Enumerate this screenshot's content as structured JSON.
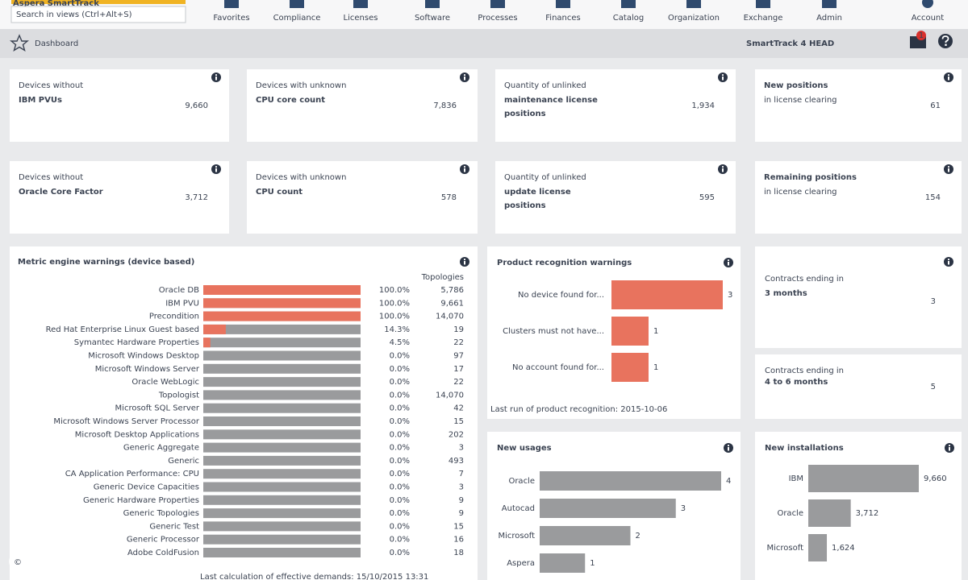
{
  "nav": {
    "logo": "Aspera SmartTrack",
    "search_placeholder": "Search in views (Ctrl+Alt+S)",
    "items": [
      "Favorites",
      "Compliance",
      "Licenses",
      "Software",
      "Processes",
      "Finances",
      "Catalog",
      "Organization",
      "Exchange",
      "Admin"
    ],
    "account": "Account"
  },
  "header": {
    "title": "Dashboard",
    "version": "SmartTrack 4 HEAD",
    "notifications": "1"
  },
  "kpis": [
    {
      "label": "Devices without",
      "sublabel": "IBM PVUs",
      "value": "9,660"
    },
    {
      "label": "Devices with unknown",
      "sublabel": "CPU core count",
      "value": "7,836"
    },
    {
      "label": "Quantity of unlinked",
      "sublabel": "maintenance license positions",
      "value": "1,934"
    },
    {
      "label": "New positions",
      "sublabel": "in license clearing",
      "value": "61"
    },
    {
      "label": "Devices without",
      "sublabel": "Oracle Core Factor",
      "value": "3,712"
    },
    {
      "label": "Devices with unknown",
      "sublabel": "CPU count",
      "value": "578"
    },
    {
      "label": "Quantity of unlinked",
      "sublabel": "update license positions",
      "value": "595"
    },
    {
      "label": "Remaining positions",
      "sublabel": "in license clearing",
      "value": "154"
    }
  ],
  "metric_warnings": {
    "title": "Metric engine warnings (device based)",
    "column_header": "Topologies",
    "rows": [
      {
        "name": "Oracle DB",
        "percent": 100,
        "percent_label": "100.0%",
        "topologies": "5,786"
      },
      {
        "name": "IBM PVU",
        "percent": 100,
        "percent_label": "100.0%",
        "topologies": "9,661"
      },
      {
        "name": "Precondition",
        "percent": 100,
        "percent_label": "100.0%",
        "topologies": "14,070"
      },
      {
        "name": "Red Hat Enterprise Linux Guest based",
        "percent": 14.3,
        "percent_label": "14.3%",
        "topologies": "19"
      },
      {
        "name": "Symantec Hardware Properties",
        "percent": 4.5,
        "percent_label": "4.5%",
        "topologies": "22"
      },
      {
        "name": "Microsoft Windows Desktop",
        "percent": 0,
        "percent_label": "0.0%",
        "topologies": "97"
      },
      {
        "name": "Microsoft Windows Server",
        "percent": 0,
        "percent_label": "0.0%",
        "topologies": "17"
      },
      {
        "name": "Oracle WebLogic",
        "percent": 0,
        "percent_label": "0.0%",
        "topologies": "22"
      },
      {
        "name": "Topologist",
        "percent": 0,
        "percent_label": "0.0%",
        "topologies": "14,070"
      },
      {
        "name": "Microsoft SQL Server",
        "percent": 0,
        "percent_label": "0.0%",
        "topologies": "42"
      },
      {
        "name": "Microsoft Windows Server Processor",
        "percent": 0,
        "percent_label": "0.0%",
        "topologies": "15"
      },
      {
        "name": "Microsoft Desktop Applications",
        "percent": 0,
        "percent_label": "0.0%",
        "topologies": "202"
      },
      {
        "name": "Generic Aggregate",
        "percent": 0,
        "percent_label": "0.0%",
        "topologies": "3"
      },
      {
        "name": "Generic",
        "percent": 0,
        "percent_label": "0.0%",
        "topologies": "493"
      },
      {
        "name": "CA Application Performance: CPU",
        "percent": 0,
        "percent_label": "0.0%",
        "topologies": "7"
      },
      {
        "name": "Generic Device Capacities",
        "percent": 0,
        "percent_label": "0.0%",
        "topologies": "3"
      },
      {
        "name": "Generic Hardware Properties",
        "percent": 0,
        "percent_label": "0.0%",
        "topologies": "9"
      },
      {
        "name": "Generic Topologies",
        "percent": 0,
        "percent_label": "0.0%",
        "topologies": "9"
      },
      {
        "name": "Generic Test",
        "percent": 0,
        "percent_label": "0.0%",
        "topologies": "15"
      },
      {
        "name": "Generic Processor",
        "percent": 0,
        "percent_label": "0.0%",
        "topologies": "16"
      },
      {
        "name": "Adobe ColdFusion",
        "percent": 0,
        "percent_label": "0.0%",
        "topologies": "18"
      }
    ],
    "footer": "Last calculation of effective demands: 15/10/2015 13:31"
  },
  "product_recognition": {
    "title": "Product recognition warnings",
    "rows": [
      {
        "label": "No device found for...",
        "value": 3
      },
      {
        "label": "Clusters must not have...",
        "value": 1
      },
      {
        "label": "No account found for...",
        "value": 1
      }
    ],
    "footer": "Last run of product recognition: 2015-10-06"
  },
  "contracts": [
    {
      "label": "Contracts ending in",
      "period": "3 months",
      "value": "3"
    },
    {
      "label": "Contracts ending in",
      "period": "4 to 6 months",
      "value": "5"
    }
  ],
  "new_usages": {
    "title": "New usages",
    "rows": [
      {
        "label": "Oracle",
        "value": 4
      },
      {
        "label": "Autocad",
        "value": 3
      },
      {
        "label": "Microsoft",
        "value": 2
      },
      {
        "label": "Aspera",
        "value": 1
      }
    ]
  },
  "new_installations": {
    "title": "New installations",
    "rows": [
      {
        "label": "IBM",
        "value": 9660,
        "value_label": "9,660"
      },
      {
        "label": "Oracle",
        "value": 3712,
        "value_label": "3,712"
      },
      {
        "label": "Microsoft",
        "value": 1624,
        "value_label": "1,624"
      }
    ]
  },
  "copyright": "©"
}
